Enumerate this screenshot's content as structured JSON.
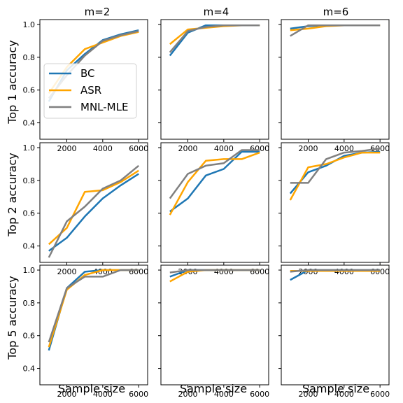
{
  "chart_data": {
    "type": "line",
    "series_names": [
      "BC",
      "ASR",
      "MNL-MLE"
    ],
    "colors": {
      "BC": "#1f77b4",
      "ASR": "#ffa500",
      "MNL-MLE": "#808080"
    },
    "col_titles": [
      "m=2",
      "m=4",
      "m=6"
    ],
    "row_ylabels": [
      "Top 1 accuracy",
      "Top 2 accuracy",
      "Top 5 accuracy"
    ],
    "xlabel": "Sample size",
    "x": [
      1000,
      2000,
      3000,
      4000,
      5000,
      6000
    ],
    "xlim": [
      500,
      6500
    ],
    "ylim": [
      0.3,
      1.03
    ],
    "xticks": [
      2000,
      4000,
      6000
    ],
    "yticks": [
      0.4,
      0.6,
      0.8,
      1.0
    ],
    "legend": {
      "location": "lower-left",
      "panel": "top-left"
    },
    "grid": false,
    "panels": [
      {
        "row": 0,
        "col": 0,
        "series": [
          {
            "name": "BC",
            "values": [
              0.53,
              0.72,
              0.82,
              0.905,
              0.94,
              0.965
            ]
          },
          {
            "name": "ASR",
            "values": [
              0.58,
              0.74,
              0.85,
              0.89,
              0.93,
              0.955
            ]
          },
          {
            "name": "MNL-MLE",
            "values": [
              0.55,
              0.69,
              0.81,
              0.9,
              0.935,
              0.96
            ]
          }
        ]
      },
      {
        "row": 0,
        "col": 1,
        "series": [
          {
            "name": "BC",
            "values": [
              0.81,
              0.95,
              0.995,
              0.995,
              0.995,
              0.995
            ]
          },
          {
            "name": "ASR",
            "values": [
              0.88,
              0.97,
              0.98,
              0.99,
              0.995,
              0.995
            ]
          },
          {
            "name": "MNL-MLE",
            "values": [
              0.83,
              0.96,
              0.985,
              0.995,
              0.995,
              0.995
            ]
          }
        ]
      },
      {
        "row": 0,
        "col": 2,
        "series": [
          {
            "name": "BC",
            "values": [
              0.975,
              0.99,
              0.995,
              0.995,
              0.995,
              0.995
            ]
          },
          {
            "name": "ASR",
            "values": [
              0.965,
              0.975,
              0.99,
              0.995,
              0.995,
              0.995
            ]
          },
          {
            "name": "MNL-MLE",
            "values": [
              0.93,
              0.995,
              0.995,
              0.995,
              0.995,
              0.995
            ]
          }
        ]
      },
      {
        "row": 1,
        "col": 0,
        "series": [
          {
            "name": "BC",
            "values": [
              0.37,
              0.45,
              0.58,
              0.69,
              0.77,
              0.84
            ]
          },
          {
            "name": "ASR",
            "values": [
              0.41,
              0.51,
              0.73,
              0.74,
              0.79,
              0.86
            ]
          },
          {
            "name": "MNL-MLE",
            "values": [
              0.33,
              0.55,
              0.64,
              0.75,
              0.8,
              0.89
            ]
          }
        ]
      },
      {
        "row": 1,
        "col": 1,
        "series": [
          {
            "name": "BC",
            "values": [
              0.61,
              0.69,
              0.83,
              0.87,
              0.975,
              0.975
            ]
          },
          {
            "name": "ASR",
            "values": [
              0.59,
              0.79,
              0.92,
              0.93,
              0.93,
              0.97
            ]
          },
          {
            "name": "MNL-MLE",
            "values": [
              0.69,
              0.84,
              0.89,
              0.905,
              0.985,
              0.985
            ]
          }
        ]
      },
      {
        "row": 1,
        "col": 2,
        "series": [
          {
            "name": "BC",
            "values": [
              0.72,
              0.85,
              0.89,
              0.95,
              0.97,
              0.975
            ]
          },
          {
            "name": "ASR",
            "values": [
              0.68,
              0.88,
              0.9,
              0.94,
              0.97,
              0.97
            ]
          },
          {
            "name": "MNL-MLE",
            "values": [
              0.785,
              0.785,
              0.93,
              0.97,
              0.98,
              0.995
            ]
          }
        ]
      },
      {
        "row": 2,
        "col": 0,
        "series": [
          {
            "name": "BC",
            "values": [
              0.51,
              0.89,
              0.99,
              1.0,
              1.0,
              1.0
            ]
          },
          {
            "name": "ASR",
            "values": [
              0.53,
              0.88,
              0.97,
              1.0,
              1.0,
              1.0
            ]
          },
          {
            "name": "MNL-MLE",
            "values": [
              0.56,
              0.89,
              0.96,
              0.96,
              1.0,
              1.0
            ]
          }
        ]
      },
      {
        "row": 2,
        "col": 1,
        "series": [
          {
            "name": "BC",
            "values": [
              0.96,
              1.0,
              1.0,
              1.0,
              1.0,
              1.0
            ]
          },
          {
            "name": "ASR",
            "values": [
              0.93,
              0.99,
              1.0,
              1.0,
              1.0,
              1.0
            ]
          },
          {
            "name": "MNL-MLE",
            "values": [
              0.985,
              1.0,
              1.0,
              1.0,
              1.0,
              1.0
            ]
          }
        ]
      },
      {
        "row": 2,
        "col": 2,
        "series": [
          {
            "name": "BC",
            "values": [
              0.94,
              1.0,
              1.0,
              1.0,
              1.0,
              1.0
            ]
          },
          {
            "name": "ASR",
            "values": [
              0.995,
              0.995,
              0.995,
              0.995,
              0.995,
              0.995
            ]
          },
          {
            "name": "MNL-MLE",
            "values": [
              0.99,
              1.0,
              1.0,
              1.0,
              1.0,
              1.0
            ]
          }
        ]
      }
    ]
  }
}
